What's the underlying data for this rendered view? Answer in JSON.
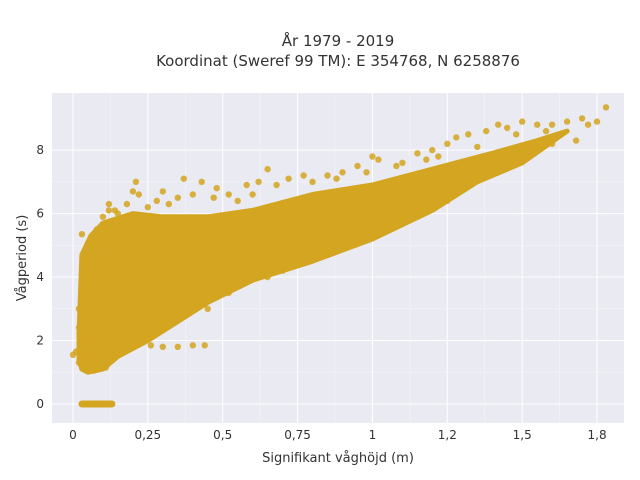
{
  "chart_data": {
    "type": "scatter",
    "title_line1": "År 1979 - 2019",
    "title_line2": "Koordinat (Sweref 99 TM): E 354768, N 6258876",
    "xlabel": "Signifikant våghöjd (m)",
    "ylabel": "Vågperiod (s)",
    "xlim": [
      -0.07,
      1.84
    ],
    "ylim": [
      -0.6,
      9.8
    ],
    "x_ticks": [
      {
        "value": 0,
        "label": "0"
      },
      {
        "value": 0.25,
        "label": "0,25"
      },
      {
        "value": 0.5,
        "label": "0,5"
      },
      {
        "value": 0.75,
        "label": "0,75"
      },
      {
        "value": 1,
        "label": "1"
      },
      {
        "value": 1.25,
        "label": "1,2"
      },
      {
        "value": 1.5,
        "label": "1,5"
      },
      {
        "value": 1.75,
        "label": "1,8"
      }
    ],
    "y_ticks": [
      {
        "value": 0,
        "label": "0"
      },
      {
        "value": 2,
        "label": "2"
      },
      {
        "value": 4,
        "label": "4"
      },
      {
        "value": 6,
        "label": "6"
      },
      {
        "value": 8,
        "label": "8"
      }
    ],
    "grid": true,
    "marker_color": "#D4A520",
    "background_color": "#EAEAF2",
    "bulk_envelope": {
      "upper": [
        [
          0.02,
          2.2
        ],
        [
          0.03,
          4.7
        ],
        [
          0.06,
          5.3
        ],
        [
          0.1,
          5.7
        ],
        [
          0.2,
          6.0
        ],
        [
          0.3,
          5.9
        ],
        [
          0.45,
          5.9
        ],
        [
          0.6,
          6.1
        ],
        [
          0.8,
          6.6
        ],
        [
          1.0,
          6.9
        ],
        [
          1.2,
          7.4
        ],
        [
          1.4,
          7.9
        ],
        [
          1.55,
          8.3
        ],
        [
          1.65,
          8.6
        ]
      ],
      "lower": [
        [
          1.65,
          8.6
        ],
        [
          1.5,
          7.6
        ],
        [
          1.35,
          7.0
        ],
        [
          1.2,
          6.1
        ],
        [
          1.0,
          5.2
        ],
        [
          0.8,
          4.5
        ],
        [
          0.6,
          3.9
        ],
        [
          0.45,
          3.2
        ],
        [
          0.35,
          2.6
        ],
        [
          0.25,
          2.0
        ],
        [
          0.15,
          1.5
        ],
        [
          0.1,
          1.1
        ],
        [
          0.05,
          1.0
        ],
        [
          0.03,
          1.1
        ],
        [
          0.02,
          1.4
        ]
      ]
    },
    "zero_band": {
      "x_start": 0.03,
      "x_end": 0.13,
      "y": 0
    },
    "points": [
      [
        0.0,
        1.55
      ],
      [
        0.02,
        1.7
      ],
      [
        0.03,
        5.35
      ],
      [
        0.05,
        5.0
      ],
      [
        0.08,
        5.5
      ],
      [
        0.1,
        5.9
      ],
      [
        0.12,
        6.1
      ],
      [
        0.15,
        6.0
      ],
      [
        0.2,
        6.7
      ],
      [
        0.22,
        6.6
      ],
      [
        0.21,
        7.0
      ],
      [
        0.28,
        6.4
      ],
      [
        0.3,
        6.7
      ],
      [
        0.35,
        6.5
      ],
      [
        0.37,
        7.1
      ],
      [
        0.4,
        6.6
      ],
      [
        0.43,
        7.0
      ],
      [
        0.48,
        6.8
      ],
      [
        0.52,
        6.6
      ],
      [
        0.58,
        6.9
      ],
      [
        0.62,
        7.0
      ],
      [
        0.65,
        7.4
      ],
      [
        0.72,
        7.1
      ],
      [
        0.8,
        7.0
      ],
      [
        0.85,
        7.2
      ],
      [
        0.9,
        7.3
      ],
      [
        0.95,
        7.5
      ],
      [
        1.0,
        7.8
      ],
      [
        1.02,
        7.7
      ],
      [
        1.1,
        7.6
      ],
      [
        1.15,
        7.9
      ],
      [
        1.2,
        8.0
      ],
      [
        1.25,
        8.2
      ],
      [
        1.28,
        8.4
      ],
      [
        1.32,
        8.5
      ],
      [
        1.38,
        8.6
      ],
      [
        1.42,
        8.8
      ],
      [
        1.45,
        8.7
      ],
      [
        1.5,
        8.9
      ],
      [
        1.55,
        8.8
      ],
      [
        1.6,
        8.8
      ],
      [
        1.65,
        8.9
      ],
      [
        1.7,
        9.0
      ],
      [
        1.75,
        8.9
      ],
      [
        1.78,
        9.35
      ],
      [
        1.68,
        8.3
      ],
      [
        1.6,
        8.2
      ],
      [
        1.5,
        8.0
      ],
      [
        1.45,
        7.7
      ],
      [
        1.4,
        7.3
      ],
      [
        1.35,
        7.2
      ],
      [
        1.3,
        6.8
      ],
      [
        1.25,
        6.4
      ],
      [
        1.2,
        6.3
      ],
      [
        1.15,
        6.0
      ],
      [
        1.1,
        5.9
      ],
      [
        1.05,
        5.6
      ],
      [
        0.95,
        5.2
      ],
      [
        0.9,
        5.0
      ],
      [
        0.85,
        4.7
      ],
      [
        0.75,
        4.4
      ],
      [
        0.7,
        4.2
      ],
      [
        0.65,
        4.0
      ],
      [
        0.58,
        3.9
      ],
      [
        0.55,
        3.8
      ],
      [
        0.52,
        3.5
      ],
      [
        0.48,
        3.4
      ],
      [
        0.45,
        3.0
      ],
      [
        0.42,
        3.2
      ],
      [
        0.38,
        2.9
      ],
      [
        0.33,
        2.6
      ],
      [
        0.3,
        2.4
      ],
      [
        0.28,
        2.3
      ],
      [
        0.25,
        2.1
      ],
      [
        0.22,
        1.9
      ],
      [
        0.2,
        1.8
      ],
      [
        0.18,
        1.7
      ],
      [
        0.16,
        1.6
      ],
      [
        0.26,
        1.85
      ],
      [
        0.3,
        1.8
      ],
      [
        0.35,
        1.8
      ],
      [
        0.4,
        1.85
      ],
      [
        0.44,
        1.85
      ],
      [
        0.11,
        1.15
      ],
      [
        0.07,
        1.05
      ],
      [
        0.04,
        1.1
      ],
      [
        0.02,
        1.3
      ],
      [
        0.01,
        1.65
      ],
      [
        0.02,
        2.4
      ],
      [
        0.02,
        3.0
      ],
      [
        0.03,
        3.8
      ],
      [
        0.12,
        6.3
      ],
      [
        0.14,
        6.1
      ],
      [
        0.18,
        6.3
      ],
      [
        0.25,
        6.2
      ],
      [
        0.32,
        6.3
      ],
      [
        0.47,
        6.5
      ],
      [
        0.55,
        6.4
      ],
      [
        0.6,
        6.6
      ],
      [
        0.68,
        6.9
      ],
      [
        0.77,
        7.2
      ],
      [
        0.88,
        7.1
      ],
      [
        0.98,
        7.3
      ],
      [
        1.08,
        7.5
      ],
      [
        1.18,
        7.7
      ],
      [
        1.22,
        7.8
      ],
      [
        1.35,
        8.1
      ],
      [
        1.48,
        8.5
      ],
      [
        1.58,
        8.6
      ],
      [
        1.72,
        8.8
      ]
    ]
  }
}
